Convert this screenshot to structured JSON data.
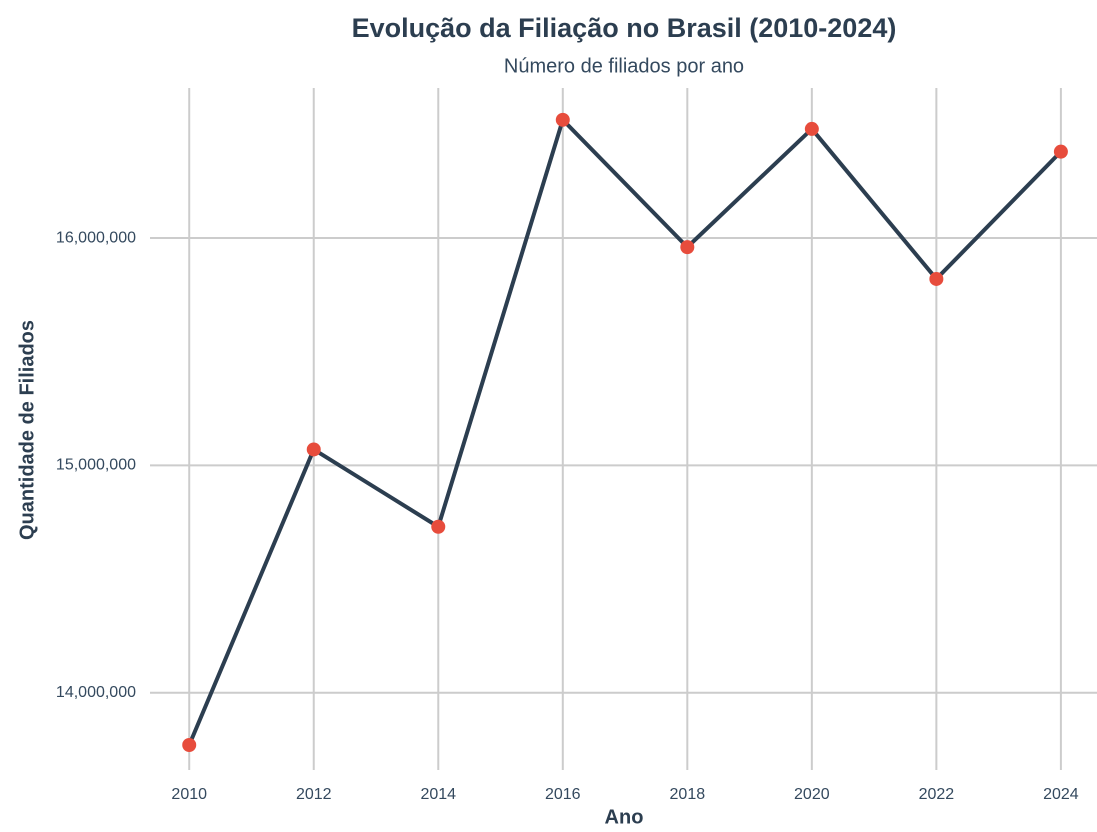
{
  "chart_data": {
    "type": "line",
    "title": "Evolução da Filiação no Brasil (2010-2024)",
    "subtitle": "Número de filiados por ano",
    "x_label": "Ano",
    "y_label": "Quantidade de Filiados",
    "x": [
      2010,
      2012,
      2014,
      2016,
      2018,
      2020,
      2022,
      2024
    ],
    "series": [
      {
        "color": "#2c3e50",
        "marker_color": "#e74c3c",
        "values": [
          13770000,
          15070000,
          14730000,
          16520000,
          15960000,
          16480000,
          15820000,
          16380000
        ]
      }
    ],
    "xlim": [
      2009.37,
      2024.58
    ],
    "xticks": [
      2010,
      2012,
      2014,
      2016,
      2018,
      2020,
      2022,
      2024
    ],
    "ylim": [
      13660000,
      16660000
    ],
    "yticks": [
      {
        "value": 14000000,
        "label": "14,000,000"
      },
      {
        "value": 15000000,
        "label": "15,000,000"
      },
      {
        "value": 16000000,
        "label": "16,000,000"
      }
    ],
    "grid": true
  }
}
